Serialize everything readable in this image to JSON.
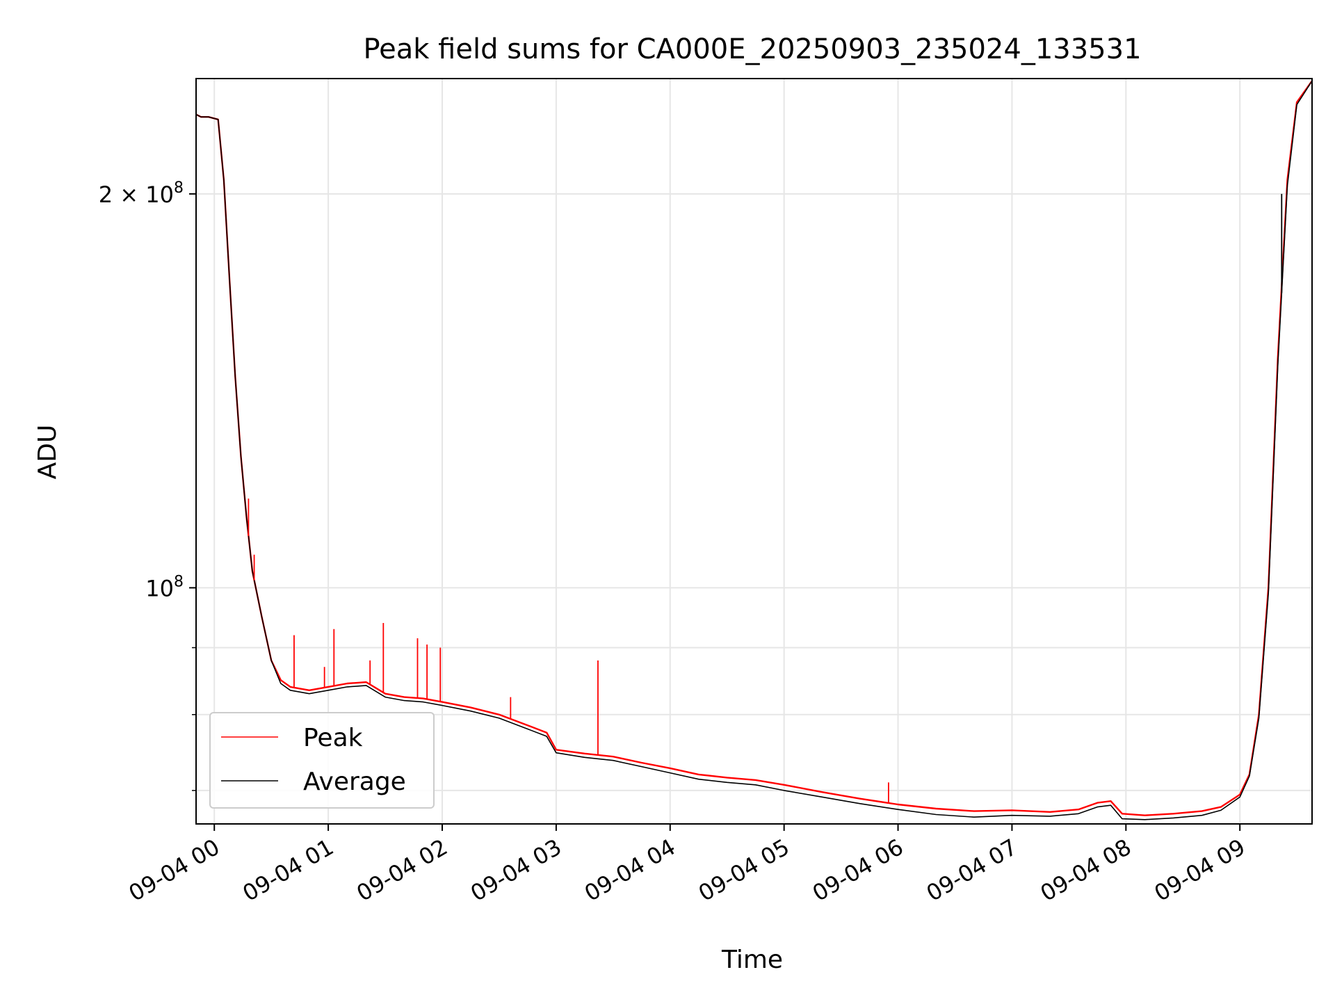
{
  "chart_data": {
    "type": "line",
    "title": "Peak field sums for CA000E_20250903_235024_133531",
    "xlabel": "Time",
    "ylabel": "ADU",
    "yscale": "log",
    "grid": true,
    "legend_position": "lower-left",
    "xlim": [
      "2025-09-03 23:50:24",
      "2025-09-04 09:38:00"
    ],
    "ylim": [
      66000000,
      245000000
    ],
    "x_ticks": [
      {
        "time": "2025-09-04 00:00",
        "label": "09-04 00"
      },
      {
        "time": "2025-09-04 01:00",
        "label": "09-04 01"
      },
      {
        "time": "2025-09-04 02:00",
        "label": "09-04 02"
      },
      {
        "time": "2025-09-04 03:00",
        "label": "09-04 03"
      },
      {
        "time": "2025-09-04 04:00",
        "label": "09-04 04"
      },
      {
        "time": "2025-09-04 05:00",
        "label": "09-04 05"
      },
      {
        "time": "2025-09-04 06:00",
        "label": "09-04 06"
      },
      {
        "time": "2025-09-04 07:00",
        "label": "09-04 07"
      },
      {
        "time": "2025-09-04 08:00",
        "label": "09-04 08"
      },
      {
        "time": "2025-09-04 09:00",
        "label": "09-04 09"
      }
    ],
    "y_major_ticks": [
      {
        "value": 100000000,
        "base": "10",
        "exp": "8",
        "prefix": ""
      },
      {
        "value": 200000000,
        "base": "10",
        "exp": "8",
        "prefix": "2 × "
      }
    ],
    "y_minor_ticks": [
      70000000,
      80000000,
      90000000
    ],
    "series": [
      {
        "name": "Peak",
        "color": "#ff0000",
        "x": [
          "2025-09-03 23:50:24",
          "2025-09-03 23:53",
          "2025-09-03 23:57",
          "2025-09-04 00:02",
          "2025-09-04 00:05",
          "2025-09-04 00:08",
          "2025-09-04 00:11",
          "2025-09-04 00:14",
          "2025-09-04 00:17",
          "2025-09-04 00:20",
          "2025-09-04 00:25",
          "2025-09-04 00:30",
          "2025-09-04 00:35",
          "2025-09-04 00:40",
          "2025-09-04 00:50",
          "2025-09-04 01:00",
          "2025-09-04 01:10",
          "2025-09-04 01:20",
          "2025-09-04 01:30",
          "2025-09-04 01:40",
          "2025-09-04 01:50",
          "2025-09-04 02:00",
          "2025-09-04 02:15",
          "2025-09-04 02:30",
          "2025-09-04 02:45",
          "2025-09-04 02:55",
          "2025-09-04 03:00",
          "2025-09-04 03:15",
          "2025-09-04 03:30",
          "2025-09-04 03:45",
          "2025-09-04 04:00",
          "2025-09-04 04:15",
          "2025-09-04 04:30",
          "2025-09-04 04:45",
          "2025-09-04 05:00",
          "2025-09-04 05:20",
          "2025-09-04 05:40",
          "2025-09-04 06:00",
          "2025-09-04 06:20",
          "2025-09-04 06:40",
          "2025-09-04 07:00",
          "2025-09-04 07:20",
          "2025-09-04 07:35",
          "2025-09-04 07:45",
          "2025-09-04 07:52",
          "2025-09-04 07:58",
          "2025-09-04 08:10",
          "2025-09-04 08:25",
          "2025-09-04 08:40",
          "2025-09-04 08:50",
          "2025-09-04 09:00",
          "2025-09-04 09:05",
          "2025-09-04 09:10",
          "2025-09-04 09:15",
          "2025-09-04 09:20",
          "2025-09-04 09:25",
          "2025-09-04 09:30",
          "2025-09-04 09:38"
        ],
        "y": [
          230000000,
          229000000,
          229000000,
          228000000,
          205000000,
          172000000,
          145000000,
          126000000,
          113000000,
          103000000,
          95000000,
          88000000,
          85000000,
          84000000,
          83500000,
          84000000,
          84500000,
          84700000,
          83000000,
          82500000,
          82300000,
          81800000,
          81000000,
          80000000,
          78500000,
          77500000,
          75200000,
          74700000,
          74300000,
          73500000,
          72800000,
          72000000,
          71600000,
          71300000,
          70700000,
          69800000,
          69000000,
          68300000,
          67800000,
          67500000,
          67600000,
          67400000,
          67700000,
          68500000,
          68700000,
          67200000,
          67000000,
          67200000,
          67500000,
          68000000,
          69500000,
          72000000,
          80000000,
          100000000,
          150000000,
          205000000,
          235000000,
          244000000
        ]
      },
      {
        "name": "Average",
        "color": "#000000",
        "x": [
          "2025-09-03 23:50:24",
          "2025-09-03 23:53",
          "2025-09-03 23:57",
          "2025-09-04 00:02",
          "2025-09-04 00:05",
          "2025-09-04 00:08",
          "2025-09-04 00:11",
          "2025-09-04 00:14",
          "2025-09-04 00:17",
          "2025-09-04 00:20",
          "2025-09-04 00:25",
          "2025-09-04 00:30",
          "2025-09-04 00:35",
          "2025-09-04 00:40",
          "2025-09-04 00:50",
          "2025-09-04 01:00",
          "2025-09-04 01:10",
          "2025-09-04 01:20",
          "2025-09-04 01:30",
          "2025-09-04 01:40",
          "2025-09-04 01:50",
          "2025-09-04 02:00",
          "2025-09-04 02:15",
          "2025-09-04 02:30",
          "2025-09-04 02:45",
          "2025-09-04 02:55",
          "2025-09-04 03:00",
          "2025-09-04 03:15",
          "2025-09-04 03:30",
          "2025-09-04 03:45",
          "2025-09-04 04:00",
          "2025-09-04 04:15",
          "2025-09-04 04:30",
          "2025-09-04 04:45",
          "2025-09-04 05:00",
          "2025-09-04 05:20",
          "2025-09-04 05:40",
          "2025-09-04 06:00",
          "2025-09-04 06:20",
          "2025-09-04 06:40",
          "2025-09-04 07:00",
          "2025-09-04 07:20",
          "2025-09-04 07:35",
          "2025-09-04 07:45",
          "2025-09-04 07:52",
          "2025-09-04 07:58",
          "2025-09-04 08:10",
          "2025-09-04 08:25",
          "2025-09-04 08:40",
          "2025-09-04 08:50",
          "2025-09-04 09:00",
          "2025-09-04 09:05",
          "2025-09-04 09:10",
          "2025-09-04 09:15",
          "2025-09-04 09:20",
          "2025-09-04 09:25",
          "2025-09-04 09:30",
          "2025-09-04 09:38"
        ],
        "y": [
          230000000,
          229000000,
          229000000,
          228000000,
          205000000,
          172000000,
          145000000,
          126000000,
          113000000,
          103000000,
          95000000,
          88000000,
          84500000,
          83500000,
          83000000,
          83500000,
          84000000,
          84200000,
          82500000,
          82000000,
          81800000,
          81300000,
          80500000,
          79500000,
          78000000,
          77000000,
          74800000,
          74200000,
          73800000,
          73000000,
          72200000,
          71400000,
          71000000,
          70700000,
          70000000,
          69200000,
          68400000,
          67700000,
          67100000,
          66800000,
          67000000,
          66900000,
          67200000,
          68000000,
          68200000,
          66600000,
          66500000,
          66700000,
          67000000,
          67600000,
          69200000,
          71800000,
          79500000,
          99000000,
          148000000,
          203000000,
          234000000,
          244000000
        ]
      }
    ],
    "spikes": [
      {
        "series": "Peak",
        "time": "2025-09-04 00:18",
        "y": 117000000
      },
      {
        "series": "Peak",
        "time": "2025-09-04 00:21",
        "y": 106000000
      },
      {
        "series": "Peak",
        "time": "2025-09-04 00:42",
        "y": 92000000
      },
      {
        "series": "Peak",
        "time": "2025-09-04 00:58",
        "y": 87000000
      },
      {
        "series": "Peak",
        "time": "2025-09-04 01:03",
        "y": 93000000
      },
      {
        "series": "Peak",
        "time": "2025-09-04 01:22",
        "y": 88000000
      },
      {
        "series": "Peak",
        "time": "2025-09-04 01:29",
        "y": 94000000
      },
      {
        "series": "Peak",
        "time": "2025-09-04 01:47",
        "y": 91500000
      },
      {
        "series": "Peak",
        "time": "2025-09-04 01:52",
        "y": 90500000
      },
      {
        "series": "Peak",
        "time": "2025-09-04 01:59",
        "y": 90000000
      },
      {
        "series": "Peak",
        "time": "2025-09-04 02:36",
        "y": 82500000
      },
      {
        "series": "Peak",
        "time": "2025-09-04 03:22",
        "y": 88000000
      },
      {
        "series": "Peak",
        "time": "2025-09-04 05:55",
        "y": 71000000
      },
      {
        "series": "Average",
        "time": "2025-09-04 09:22",
        "y": 200000000
      }
    ]
  }
}
